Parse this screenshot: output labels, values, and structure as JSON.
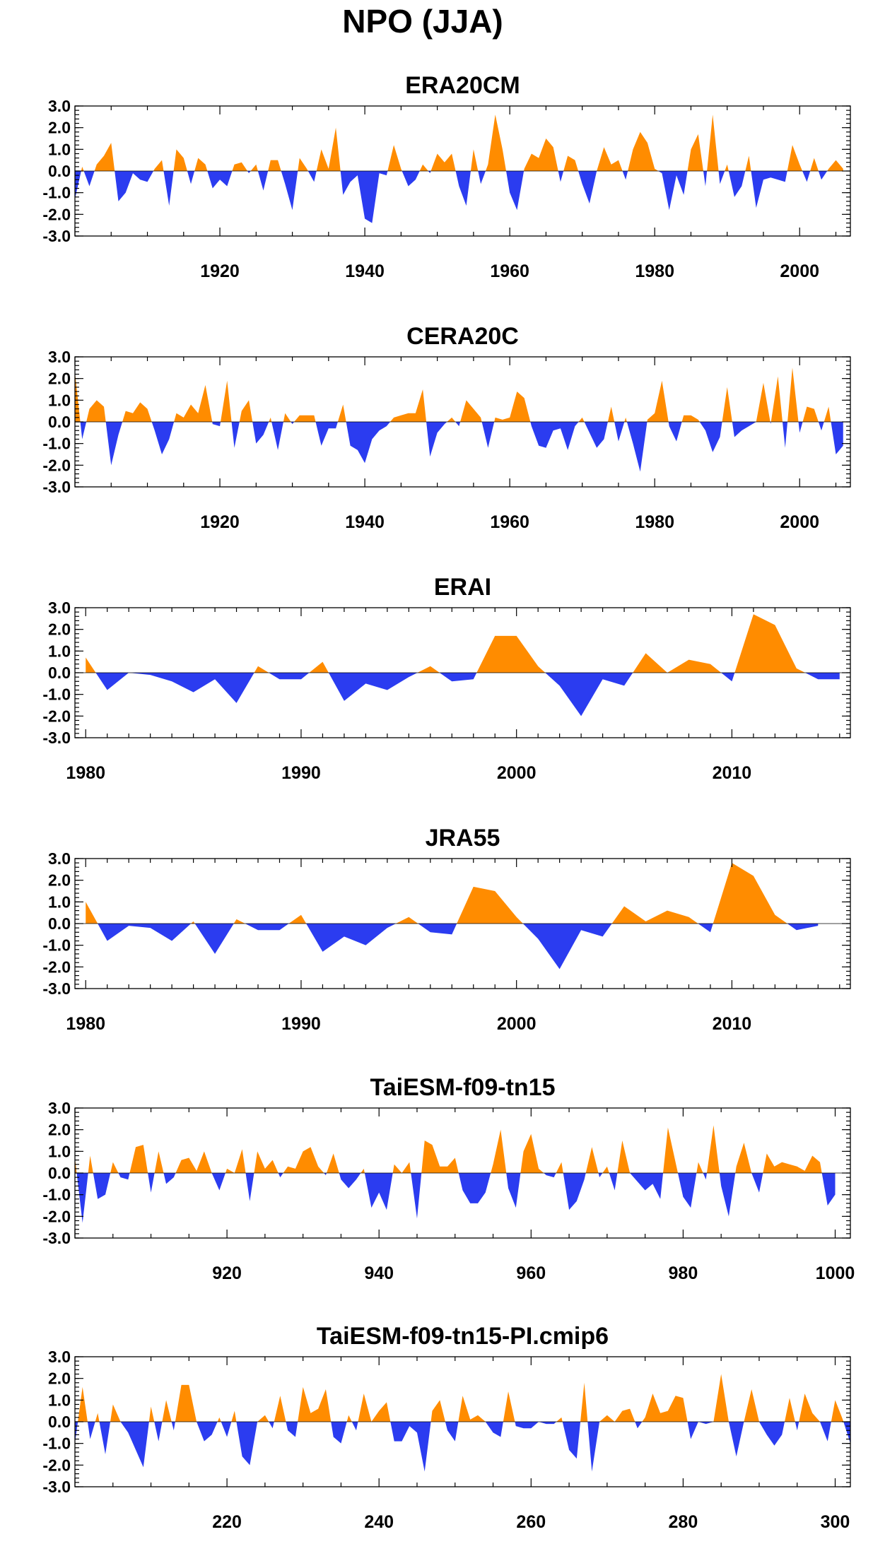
{
  "title": "NPO (JJA)",
  "colors": {
    "positive": "#ff8c00",
    "negative": "#2b3cf0"
  },
  "chart_data": [
    {
      "type": "area",
      "title": "ERA20CM",
      "ylim": [
        -3.0,
        3.0
      ],
      "yticks": [
        "3.0",
        "2.0",
        "1.0",
        "0.0",
        "-1.0",
        "-2.0",
        "-3.0"
      ],
      "xlim": [
        1900,
        2007
      ],
      "xticks": [
        "1920",
        "1940",
        "1960",
        "1980",
        "2000"
      ],
      "x_start": 1900,
      "x_step": 1,
      "values": [
        -1.3,
        0.2,
        -0.7,
        0.3,
        0.7,
        1.3,
        -1.4,
        -1.0,
        -0.1,
        -0.4,
        -0.5,
        0.1,
        0.5,
        -1.6,
        1.0,
        0.6,
        -0.6,
        0.6,
        0.3,
        -0.8,
        -0.4,
        -0.7,
        0.3,
        0.4,
        -0.1,
        0.3,
        -0.9,
        0.5,
        0.5,
        -0.6,
        -1.8,
        0.6,
        0.1,
        -0.5,
        1.0,
        0.1,
        2.0,
        -1.1,
        -0.5,
        -0.2,
        -2.2,
        -2.4,
        -0.1,
        -0.2,
        1.2,
        0.1,
        -0.7,
        -0.4,
        0.3,
        -0.1,
        0.8,
        0.4,
        0.8,
        -0.7,
        -1.6,
        1.0,
        -0.6,
        0.3,
        2.6,
        1.0,
        -1.0,
        -1.8,
        0.1,
        0.8,
        0.6,
        1.5,
        1.1,
        -0.5,
        0.7,
        0.5,
        -0.6,
        -1.5,
        0.0,
        1.1,
        0.3,
        0.5,
        -0.4,
        1.0,
        1.8,
        1.3,
        0.1,
        -0.1,
        -1.8,
        -0.2,
        -1.1,
        1.0,
        1.7,
        -0.7,
        2.6,
        -0.6,
        0.3,
        -1.2,
        -0.7,
        0.7,
        -1.7,
        -0.4,
        -0.3,
        -0.4,
        -0.5,
        1.2,
        0.3,
        -0.5,
        0.6,
        -0.4,
        0.1,
        0.5,
        0.1
      ]
    },
    {
      "type": "area",
      "title": "CERA20C",
      "ylim": [
        -3.0,
        3.0
      ],
      "yticks": [
        "3.0",
        "2.0",
        "1.0",
        "0.0",
        "-1.0",
        "-2.0",
        "-3.0"
      ],
      "xlim": [
        1900,
        2007
      ],
      "xticks": [
        "1920",
        "1940",
        "1960",
        "1980",
        "2000"
      ],
      "x_start": 1900,
      "x_step": 1,
      "values": [
        2.3,
        -0.8,
        0.6,
        1.0,
        0.7,
        -2.0,
        -0.6,
        0.5,
        0.4,
        0.9,
        0.6,
        -0.4,
        -1.5,
        -0.8,
        0.4,
        0.2,
        0.8,
        0.4,
        1.7,
        -0.1,
        -0.2,
        1.9,
        -1.2,
        0.5,
        1.0,
        -1.0,
        -0.6,
        0.2,
        -1.3,
        0.4,
        -0.1,
        0.3,
        0.3,
        0.3,
        -1.1,
        -0.3,
        -0.3,
        0.8,
        -1.1,
        -1.3,
        -1.9,
        -0.8,
        -0.4,
        -0.2,
        0.2,
        0.3,
        0.4,
        0.4,
        1.5,
        -1.6,
        -0.5,
        -0.1,
        0.2,
        -0.2,
        1.0,
        0.6,
        0.2,
        -1.2,
        0.2,
        0.1,
        0.2,
        1.4,
        1.1,
        -0.2,
        -1.1,
        -1.2,
        -0.4,
        -0.3,
        -1.3,
        -0.2,
        0.2,
        -0.5,
        -1.2,
        -0.8,
        0.7,
        -0.9,
        0.2,
        -1.0,
        -2.3,
        0.1,
        0.4,
        1.9,
        -0.2,
        -0.9,
        0.3,
        0.3,
        0.1,
        -0.4,
        -1.4,
        -0.7,
        1.6,
        -0.7,
        -0.4,
        -0.2,
        0.0,
        1.8,
        -0.1,
        2.1,
        -1.2,
        2.5,
        -0.5,
        0.7,
        0.6,
        -0.4,
        0.7,
        -1.5,
        -1.1
      ]
    },
    {
      "type": "area",
      "title": "ERAI",
      "ylim": [
        -3.0,
        3.0
      ],
      "yticks": [
        "3.0",
        "2.0",
        "1.0",
        "0.0",
        "-1.0",
        "-2.0",
        "-3.0"
      ],
      "xlim": [
        1979.5,
        2015.5
      ],
      "xticks": [
        "1980",
        "1990",
        "2000",
        "2010"
      ],
      "x_start": 1980,
      "x_step": 1,
      "values": [
        0.7,
        -0.8,
        0.0,
        -0.1,
        -0.4,
        -0.9,
        -0.3,
        -1.4,
        0.3,
        -0.3,
        -0.3,
        0.5,
        -1.3,
        -0.5,
        -0.8,
        -0.2,
        0.3,
        -0.4,
        -0.3,
        1.7,
        1.7,
        0.3,
        -0.6,
        -2.0,
        -0.3,
        -0.6,
        0.9,
        0.0,
        0.6,
        0.4,
        -0.4,
        2.7,
        2.2,
        0.2,
        -0.3,
        -0.3
      ]
    },
    {
      "type": "area",
      "title": "JRA55",
      "ylim": [
        -3.0,
        3.0
      ],
      "yticks": [
        "3.0",
        "2.0",
        "1.0",
        "0.0",
        "-1.0",
        "-2.0",
        "-3.0"
      ],
      "xlim": [
        1979.5,
        2015.5
      ],
      "xticks": [
        "1980",
        "1990",
        "2000",
        "2010"
      ],
      "x_start": 1980,
      "x_step": 1,
      "values": [
        1.0,
        -0.8,
        -0.1,
        -0.2,
        -0.8,
        0.1,
        -1.4,
        0.2,
        -0.3,
        -0.3,
        0.4,
        -1.3,
        -0.6,
        -1.0,
        -0.2,
        0.3,
        -0.4,
        -0.5,
        1.7,
        1.5,
        0.3,
        -0.7,
        -2.1,
        -0.3,
        -0.6,
        0.8,
        0.1,
        0.6,
        0.3,
        -0.4,
        2.8,
        2.2,
        0.4,
        -0.3,
        -0.1
      ]
    },
    {
      "type": "area",
      "title": "TaiESM-f09-tn15",
      "ylim": [
        -3.0,
        3.0
      ],
      "yticks": [
        "3.0",
        "2.0",
        "1.0",
        "0.0",
        "-1.0",
        "-2.0",
        "-3.0"
      ],
      "xlim": [
        900,
        1002
      ],
      "xticks": [
        "920",
        "940",
        "960",
        "980",
        "1000"
      ],
      "x_start": 900,
      "x_step": 1,
      "values": [
        0.7,
        -2.3,
        0.8,
        -1.2,
        -1.0,
        0.5,
        -0.2,
        -0.3,
        1.2,
        1.3,
        -0.9,
        1.0,
        -0.5,
        -0.2,
        0.6,
        0.7,
        0.1,
        1.0,
        0.0,
        -0.8,
        0.2,
        0.0,
        1.1,
        -1.3,
        1.0,
        0.2,
        0.6,
        -0.2,
        0.3,
        0.2,
        1.0,
        1.2,
        0.3,
        -0.1,
        0.9,
        -0.3,
        -0.7,
        -0.3,
        0.2,
        -1.6,
        -0.9,
        -1.7,
        0.4,
        0.0,
        0.5,
        -2.1,
        1.5,
        1.3,
        0.3,
        0.3,
        0.7,
        -0.8,
        -1.4,
        -1.4,
        -0.9,
        0.4,
        2.0,
        -0.7,
        -1.6,
        1.0,
        1.8,
        0.2,
        -0.1,
        -0.2,
        0.5,
        -1.7,
        -1.3,
        -0.3,
        1.2,
        -0.2,
        0.3,
        -0.8,
        1.5,
        0.0,
        -0.4,
        -0.8,
        -0.5,
        -1.2,
        2.1,
        0.5,
        -1.1,
        -1.6,
        0.5,
        -0.3,
        2.2,
        -0.6,
        -2.0,
        0.3,
        1.4,
        0.0,
        -0.9,
        0.9,
        0.3,
        0.5,
        0.4,
        0.3,
        0.1,
        0.8,
        0.5,
        -1.5,
        -1.0
      ]
    },
    {
      "type": "area",
      "title": "TaiESM-f09-tn15-PI.cmip6",
      "ylim": [
        -3.0,
        3.0
      ],
      "yticks": [
        "3.0",
        "2.0",
        "1.0",
        "0.0",
        "-1.0",
        "-2.0",
        "-3.0"
      ],
      "xlim": [
        200,
        302
      ],
      "xticks": [
        "220",
        "240",
        "260",
        "280",
        "300"
      ],
      "x_start": 200,
      "x_step": 1,
      "values": [
        -1.0,
        1.6,
        -0.8,
        0.4,
        -1.5,
        0.8,
        0.0,
        -0.5,
        -1.3,
        -2.1,
        0.7,
        -0.9,
        1.0,
        -0.4,
        1.7,
        1.7,
        0.0,
        -0.9,
        -0.6,
        0.2,
        -0.7,
        0.5,
        -1.6,
        -2.0,
        0.0,
        0.3,
        -0.3,
        1.2,
        -0.4,
        -0.7,
        1.6,
        0.4,
        0.6,
        1.5,
        -0.7,
        -1.0,
        0.3,
        -0.4,
        1.3,
        0.0,
        0.5,
        0.9,
        -0.9,
        -0.9,
        -0.2,
        -0.5,
        -2.3,
        0.5,
        1.0,
        -0.4,
        -0.9,
        1.2,
        0.1,
        0.3,
        0.0,
        -0.5,
        -0.7,
        1.4,
        -0.2,
        -0.3,
        -0.3,
        0.0,
        -0.1,
        -0.1,
        0.2,
        -1.3,
        -1.7,
        1.8,
        -2.3,
        0.0,
        0.3,
        0.0,
        0.5,
        0.6,
        -0.3,
        0.2,
        1.3,
        0.4,
        0.5,
        1.2,
        1.1,
        -0.8,
        0.0,
        -0.1,
        0.0,
        2.2,
        0.0,
        -1.6,
        0.0,
        1.5,
        0.0,
        -0.6,
        -1.1,
        -0.6,
        1.1,
        -0.4,
        1.3,
        0.4,
        0.0,
        -0.9,
        1.0,
        0.1,
        -1.0
      ]
    }
  ]
}
